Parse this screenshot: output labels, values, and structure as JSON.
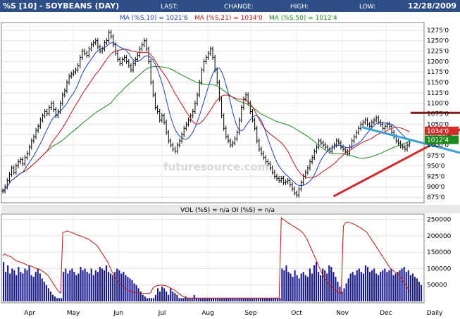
{
  "header": {
    "symbol": "%S [10] - SOYBEANS (DAY)",
    "last_label": "LAST:",
    "change_label": "CHANGE:",
    "high_label": "HIGH:",
    "low_label": "LOW:",
    "date": "12/28/2009"
  },
  "ma_legend": [
    {
      "text": "MA (%S,10) = 1021'6",
      "color": "#1f3fbf"
    },
    {
      "text": "MA (%S,21) = 1034'0",
      "color": "#c01818"
    },
    {
      "text": "MA (%S,50) = 1012'4",
      "color": "#1a8a1a"
    }
  ],
  "watermark": "futuresource.com",
  "volume_title": "VOL (%S) = n/a OI (%S) = n/a",
  "badges": [
    {
      "text": "1034'0",
      "value": 1034,
      "color": "#d42a2a"
    },
    {
      "text": "1012'4",
      "value": 1012.5,
      "color": "#1a8a1a"
    }
  ],
  "colors": {
    "header_bg": "#2d4e86",
    "price": "#000000",
    "ma10": "#1f3fbf",
    "ma21": "#c01818",
    "ma50": "#1a8a1a",
    "volume": "#1a1a8c",
    "open_interest": "#c01818",
    "support_line": "#d42a2a",
    "resistance_line": "#8b1a1a",
    "channel_line": "#3aa0d8"
  },
  "chart_data": [
    {
      "type": "line",
      "name": "price",
      "x_ticks": [
        "Apr",
        "May",
        "Jun",
        "Jul",
        "Aug",
        "Sep",
        "Oct",
        "Nov",
        "Dec",
        "Daily"
      ],
      "y_ticks": [
        "875'0",
        "900'0",
        "925'0",
        "950'0",
        "975'0",
        "1000'0",
        "1025'0",
        "1050'0",
        "1075'0",
        "1100'0",
        "1125'0",
        "1150'0",
        "1175'0",
        "1200'0",
        "1225'0",
        "1250'0",
        "1275'0"
      ],
      "ylim": [
        865,
        1290
      ],
      "days": 190,
      "closes": [
        890,
        900,
        915,
        930,
        945,
        935,
        950,
        960,
        965,
        955,
        970,
        980,
        995,
        1010,
        1020,
        1035,
        1045,
        1060,
        1070,
        1080,
        1075,
        1090,
        1100,
        1085,
        1070,
        1080,
        1100,
        1120,
        1130,
        1150,
        1165,
        1170,
        1175,
        1180,
        1190,
        1210,
        1225,
        1220,
        1215,
        1230,
        1240,
        1245,
        1250,
        1235,
        1225,
        1230,
        1245,
        1250,
        1270,
        1260,
        1240,
        1220,
        1205,
        1195,
        1205,
        1210,
        1200,
        1190,
        1180,
        1195,
        1205,
        1215,
        1230,
        1240,
        1250,
        1230,
        1200,
        1150,
        1120,
        1090,
        1080,
        1060,
        1070,
        1055,
        1030,
        1010,
        1000,
        990,
        985,
        1000,
        1010,
        1025,
        1040,
        1050,
        1060,
        1070,
        1080,
        1100,
        1120,
        1150,
        1180,
        1200,
        1210,
        1220,
        1230,
        1210,
        1180,
        1150,
        1110,
        1070,
        1040,
        1020,
        1010,
        1000,
        1005,
        1015,
        1030,
        1060,
        1090,
        1110,
        1120,
        1100,
        1080,
        1060,
        1040,
        1010,
        990,
        980,
        970,
        960,
        955,
        945,
        935,
        925,
        920,
        915,
        920,
        910,
        912,
        915,
        905,
        895,
        885,
        880,
        895,
        910,
        925,
        935,
        945,
        960,
        970,
        985,
        995,
        1010,
        1005,
        1000,
        995,
        990,
        985,
        995,
        1000,
        1010,
        1005,
        995,
        990,
        985,
        980,
        995,
        1010,
        1020,
        1030,
        1040,
        1050,
        1055,
        1060,
        1050,
        1045,
        1055,
        1060,
        1065,
        1055,
        1050,
        1040,
        1045,
        1050,
        1045,
        1030,
        1020,
        1010,
        1005,
        998,
        995,
        990,
        1000,
        1005
      ],
      "series": [
        {
          "name": "MA (%S,10)",
          "role": "ma10"
        },
        {
          "name": "MA (%S,21)",
          "role": "ma21"
        },
        {
          "name": "MA (%S,50)",
          "role": "ma50"
        }
      ],
      "trend_lines": [
        {
          "role": "support_line",
          "from": [
            150,
            878
          ],
          "to": [
            208,
            1040
          ]
        },
        {
          "role": "resistance_line",
          "from": [
            185,
            1077
          ],
          "to": [
            208,
            1077
          ]
        },
        {
          "role": "channel_line",
          "from": [
            163,
            1042
          ],
          "to": [
            208,
            980
          ]
        }
      ]
    },
    {
      "type": "bar",
      "name": "volume",
      "y_ticks": [
        "50000",
        "100000",
        "150000",
        "200000",
        "250000"
      ],
      "ylim": [
        0,
        262000
      ],
      "volume": [
        120000,
        90000,
        110000,
        85000,
        100000,
        95000,
        80000,
        105000,
        90000,
        85000,
        100000,
        95000,
        110000,
        80000,
        75000,
        90000,
        100000,
        85000,
        70000,
        60000,
        50000,
        40000,
        30000,
        20000,
        15000,
        10000,
        10000,
        10000,
        90000,
        100000,
        85000,
        95000,
        100000,
        90000,
        80000,
        85000,
        105000,
        95000,
        100000,
        90000,
        85000,
        100000,
        80000,
        95000,
        90000,
        105000,
        100000,
        95000,
        110000,
        90000,
        85000,
        80000,
        90000,
        100000,
        95000,
        85000,
        90000,
        80000,
        75000,
        70000,
        65000,
        55000,
        50000,
        40000,
        30000,
        20000,
        15000,
        10000,
        10000,
        10000,
        10000,
        20000,
        40000,
        30000,
        45000,
        40000,
        30000,
        20000,
        40000,
        30000,
        25000,
        20000,
        10000,
        10000,
        10000,
        15000,
        10000,
        10000,
        10000,
        20000,
        10000,
        10000,
        10000,
        10000,
        10000,
        10000,
        10000,
        10000,
        10000,
        10000,
        10000,
        10000,
        10000,
        10000,
        10000,
        10000,
        10000,
        10000,
        10000,
        10000,
        10000,
        10000,
        10000,
        10000,
        10000,
        10000,
        10000,
        10000,
        10000,
        10000,
        10000,
        10000,
        10000,
        10000,
        10000,
        10000,
        10000,
        10000,
        10000,
        10000,
        100000,
        95000,
        110000,
        90000,
        85000,
        75000,
        95000,
        80000,
        70000,
        85000,
        90000,
        80000,
        75000,
        100000,
        85000,
        110000,
        120000,
        90000,
        80000,
        100000,
        95000,
        85000,
        110000,
        105000,
        90000,
        75000,
        60000,
        45000,
        30000,
        40000,
        55000,
        70000,
        85000,
        90000,
        80000,
        95000,
        100000,
        90000,
        85000,
        110000,
        105000,
        90000,
        95000,
        100000,
        85000,
        80000,
        90000,
        95000,
        100000,
        90000,
        95000,
        100000,
        80000,
        85000,
        90000,
        95000,
        100000,
        105000,
        90000,
        95000,
        80000,
        85000,
        75000,
        70000,
        60000,
        50000
      ],
      "open_interest": [
        140000,
        145000,
        140000,
        138000,
        135000,
        130000,
        125000,
        122000,
        120000,
        118000,
        115000,
        112000,
        110000,
        108000,
        105000,
        102000,
        100000,
        98000,
        95000,
        90000,
        85000,
        80000,
        70000,
        60000,
        50000,
        40000,
        30000,
        25000,
        210000,
        212000,
        215000,
        213000,
        210000,
        208000,
        205000,
        202000,
        200000,
        198000,
        195000,
        192000,
        190000,
        185000,
        180000,
        175000,
        170000,
        160000,
        150000,
        140000,
        130000,
        120000,
        105000,
        90000,
        80000,
        70000,
        60000,
        52000,
        46000,
        40000,
        36000,
        33000,
        30000,
        28000,
        27000,
        26000,
        25000,
        24000,
        24000,
        24000,
        25000,
        26000,
        40000,
        46000,
        48000,
        49000,
        50000,
        49000,
        48000,
        45000,
        42000,
        38000,
        35000,
        30000,
        25000,
        20000,
        15000,
        12000,
        10000,
        10000,
        10000,
        10000,
        10000,
        10000,
        10000,
        10000,
        10000,
        10000,
        10000,
        10000,
        10000,
        10000,
        10000,
        10000,
        10000,
        10000,
        10000,
        10000,
        10000,
        10000,
        10000,
        10000,
        10000,
        10000,
        10000,
        10000,
        10000,
        10000,
        10000,
        10000,
        10000,
        10000,
        10000,
        10000,
        10000,
        10000,
        10000,
        10000,
        10000,
        10000,
        10000,
        10000,
        255000,
        250000,
        245000,
        240000,
        236000,
        232000,
        228000,
        224000,
        220000,
        215000,
        210000,
        200000,
        190000,
        175000,
        160000,
        145000,
        130000,
        115000,
        100000,
        85000,
        75000,
        65000,
        55000,
        48000,
        42000,
        35000,
        30000,
        26000,
        24000,
        230000,
        240000,
        242000,
        240000,
        238000,
        235000,
        232000,
        228000,
        224000,
        220000,
        215000,
        210000,
        200000,
        190000,
        180000,
        170000,
        160000,
        150000,
        140000,
        130000,
        120000,
        110000,
        100000,
        95000,
        90000,
        85000,
        80000,
        70000,
        60000,
        50000,
        40000,
        30000
      ]
    }
  ]
}
